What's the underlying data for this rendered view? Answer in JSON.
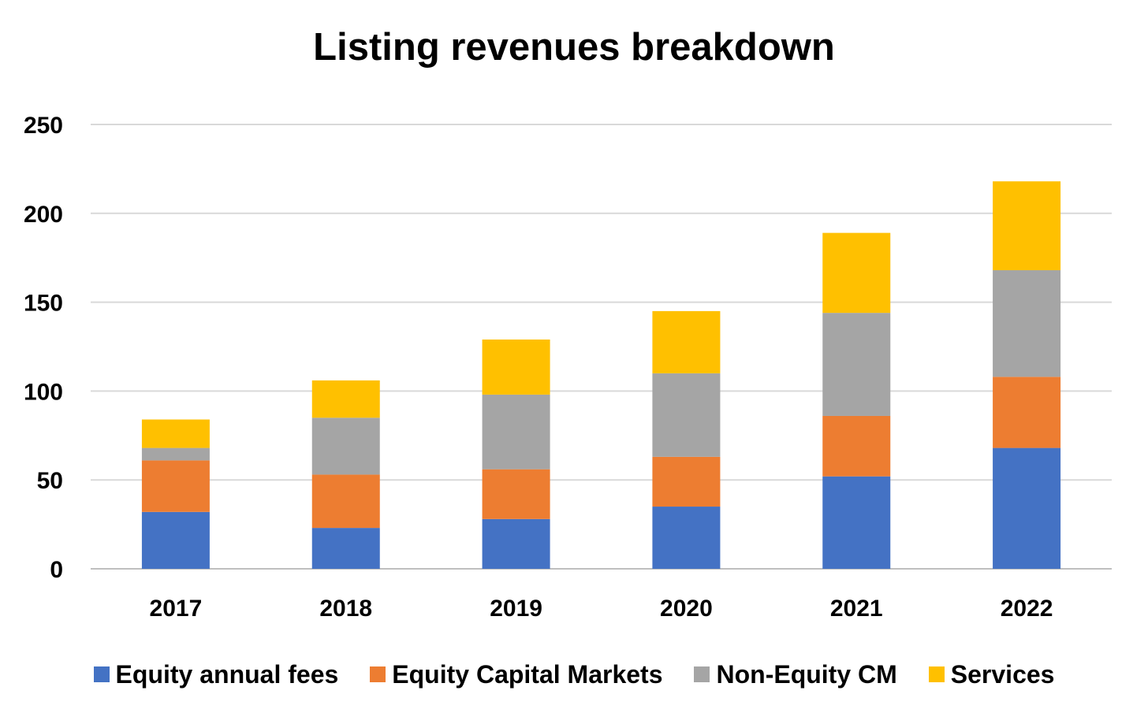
{
  "chart_data": {
    "type": "bar",
    "stacked": true,
    "title": "Listing revenues breakdown",
    "xlabel": "",
    "ylabel": "",
    "categories": [
      "2017",
      "2018",
      "2019",
      "2020",
      "2021",
      "2022"
    ],
    "ylim": [
      0,
      250
    ],
    "yticks": [
      "0",
      "50",
      "100",
      "150",
      "200",
      "250"
    ],
    "grid": true,
    "legend_position": "bottom",
    "series": [
      {
        "name": "Equity annual fees",
        "color": "#4472C4",
        "values": [
          32,
          23,
          28,
          35,
          52,
          68
        ]
      },
      {
        "name": "Equity Capital Markets",
        "color": "#ED7D31",
        "values": [
          29,
          30,
          28,
          28,
          34,
          40
        ]
      },
      {
        "name": "Non-Equity CM",
        "color": "#A5A5A5",
        "values": [
          7,
          32,
          42,
          47,
          58,
          60
        ]
      },
      {
        "name": "Services",
        "color": "#FFC000",
        "values": [
          16,
          21,
          31,
          35,
          45,
          50
        ]
      }
    ]
  }
}
